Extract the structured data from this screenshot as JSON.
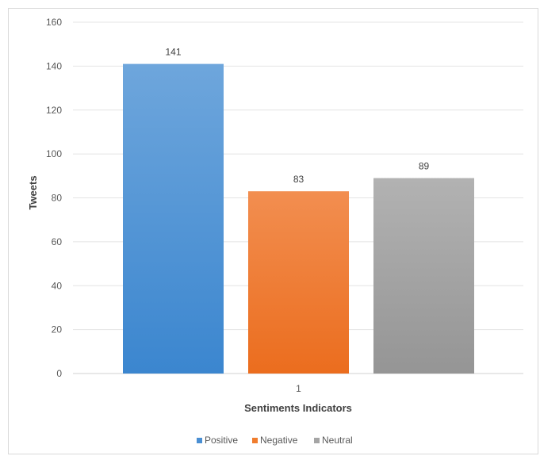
{
  "chart_data": {
    "type": "bar",
    "title": "",
    "xlabel": "Sentiments Indicators",
    "ylabel": "Tweets",
    "categories": [
      "1"
    ],
    "ylim": [
      0,
      160
    ],
    "yticks": [
      0,
      20,
      40,
      60,
      80,
      100,
      120,
      140,
      160
    ],
    "grid": true,
    "legend_position": "bottom",
    "series": [
      {
        "name": "Positive",
        "values": [
          141
        ],
        "color": "#4a8fd3"
      },
      {
        "name": "Negative",
        "values": [
          83
        ],
        "color": "#f07d2e"
      },
      {
        "name": "Neutral",
        "values": [
          89
        ],
        "color": "#a5a5a5"
      }
    ]
  }
}
